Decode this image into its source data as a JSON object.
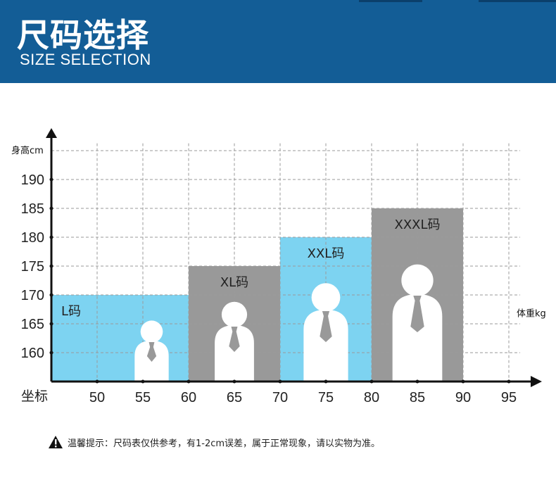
{
  "header": {
    "title": "尺码选择",
    "subtitle": "SIZE SELECTION",
    "background": "#135d96"
  },
  "tip": {
    "icon": "warning-icon",
    "text": "温馨提示：尺码表仅供参考，有1-2cm误差，属于正常现象，请以实物为准。"
  },
  "chart_data": {
    "type": "bar",
    "title": "尺码选择",
    "ylabel": "身高cm",
    "xlabel": "体重kg",
    "x_origin_label": "坐标",
    "ylim": [
      155,
      197
    ],
    "xlim": [
      45,
      97
    ],
    "y_ticks": [
      160,
      165,
      170,
      175,
      180,
      185,
      190
    ],
    "x_ticks": [
      50,
      55,
      60,
      65,
      70,
      75,
      80,
      85,
      90,
      95
    ],
    "grid": true,
    "colors": {
      "blue": "#7dd3f1",
      "gray": "#999999"
    },
    "sizes": [
      {
        "label": "L码",
        "weight_from": 45,
        "weight_to": 60,
        "height_max": 170,
        "color": "blue"
      },
      {
        "label": "XL码",
        "weight_from": 60,
        "weight_to": 70,
        "height_max": 175,
        "color": "gray"
      },
      {
        "label": "XXL码",
        "weight_from": 70,
        "weight_to": 80,
        "height_max": 180,
        "color": "blue"
      },
      {
        "label": "XXXL码",
        "weight_from": 80,
        "weight_to": 90,
        "height_max": 185,
        "color": "gray"
      }
    ]
  }
}
